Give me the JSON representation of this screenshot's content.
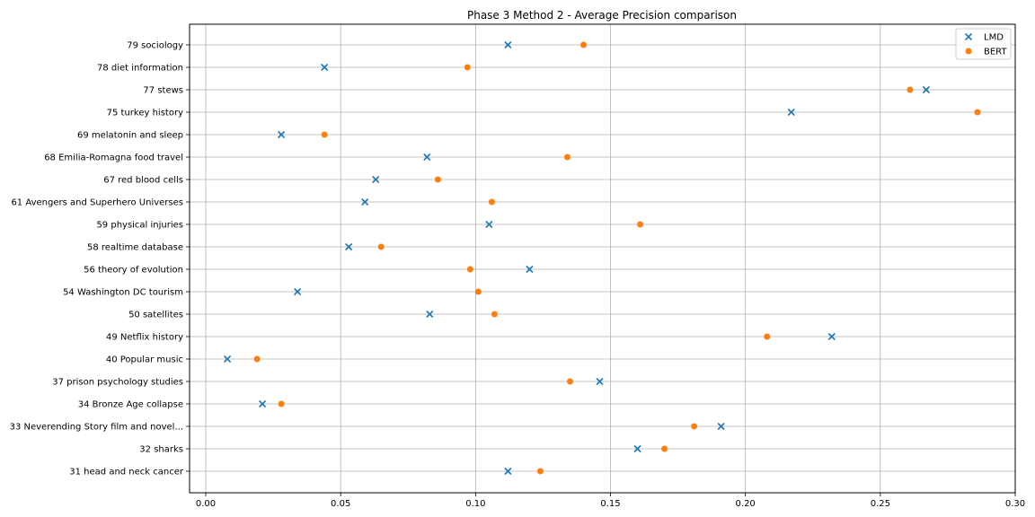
{
  "chart_data": {
    "type": "scatter",
    "title": "Phase 3 Method 2 - Average Precision comparison",
    "xlabel": "",
    "ylabel": "",
    "xlim": [
      -0.006,
      0.3
    ],
    "xticks": [
      0.0,
      0.05,
      0.1,
      0.15,
      0.2,
      0.25,
      0.3
    ],
    "xtick_labels": [
      "0.00",
      "0.05",
      "0.10",
      "0.15",
      "0.20",
      "0.25",
      "0.30"
    ],
    "grid": true,
    "legend_position": "top-right",
    "categories": [
      "79 sociology",
      "78 diet information",
      "77 stews",
      "75 turkey history",
      "69 melatonin and sleep",
      "68 Emilia-Romagna food travel",
      "67 red blood cells",
      "61 Avengers and Superhero Universes",
      "59 physical injuries",
      "58 realtime database",
      "56 theory of evolution",
      "54 Washington DC tourism",
      "50 satellites",
      "49 Netflix history",
      "40 Popular music",
      "37 prison psychology studies",
      "34 Bronze Age collapse",
      "33 Neverending Story film and novel...",
      "32 sharks",
      "31 head and neck cancer"
    ],
    "series": [
      {
        "name": "LMD",
        "marker": "x",
        "color": "#1f77b4",
        "values": [
          0.112,
          0.044,
          0.267,
          0.217,
          0.028,
          0.082,
          0.063,
          0.059,
          0.105,
          0.053,
          0.12,
          0.034,
          0.083,
          0.232,
          0.008,
          0.146,
          0.021,
          0.191,
          0.16,
          0.112
        ]
      },
      {
        "name": "BERT",
        "marker": "o",
        "color": "#ff7f0e",
        "values": [
          0.14,
          0.097,
          0.261,
          0.286,
          0.044,
          0.134,
          0.086,
          0.106,
          0.161,
          0.065,
          0.098,
          0.101,
          0.107,
          0.208,
          0.019,
          0.135,
          0.028,
          0.181,
          0.17,
          0.124
        ]
      }
    ]
  }
}
